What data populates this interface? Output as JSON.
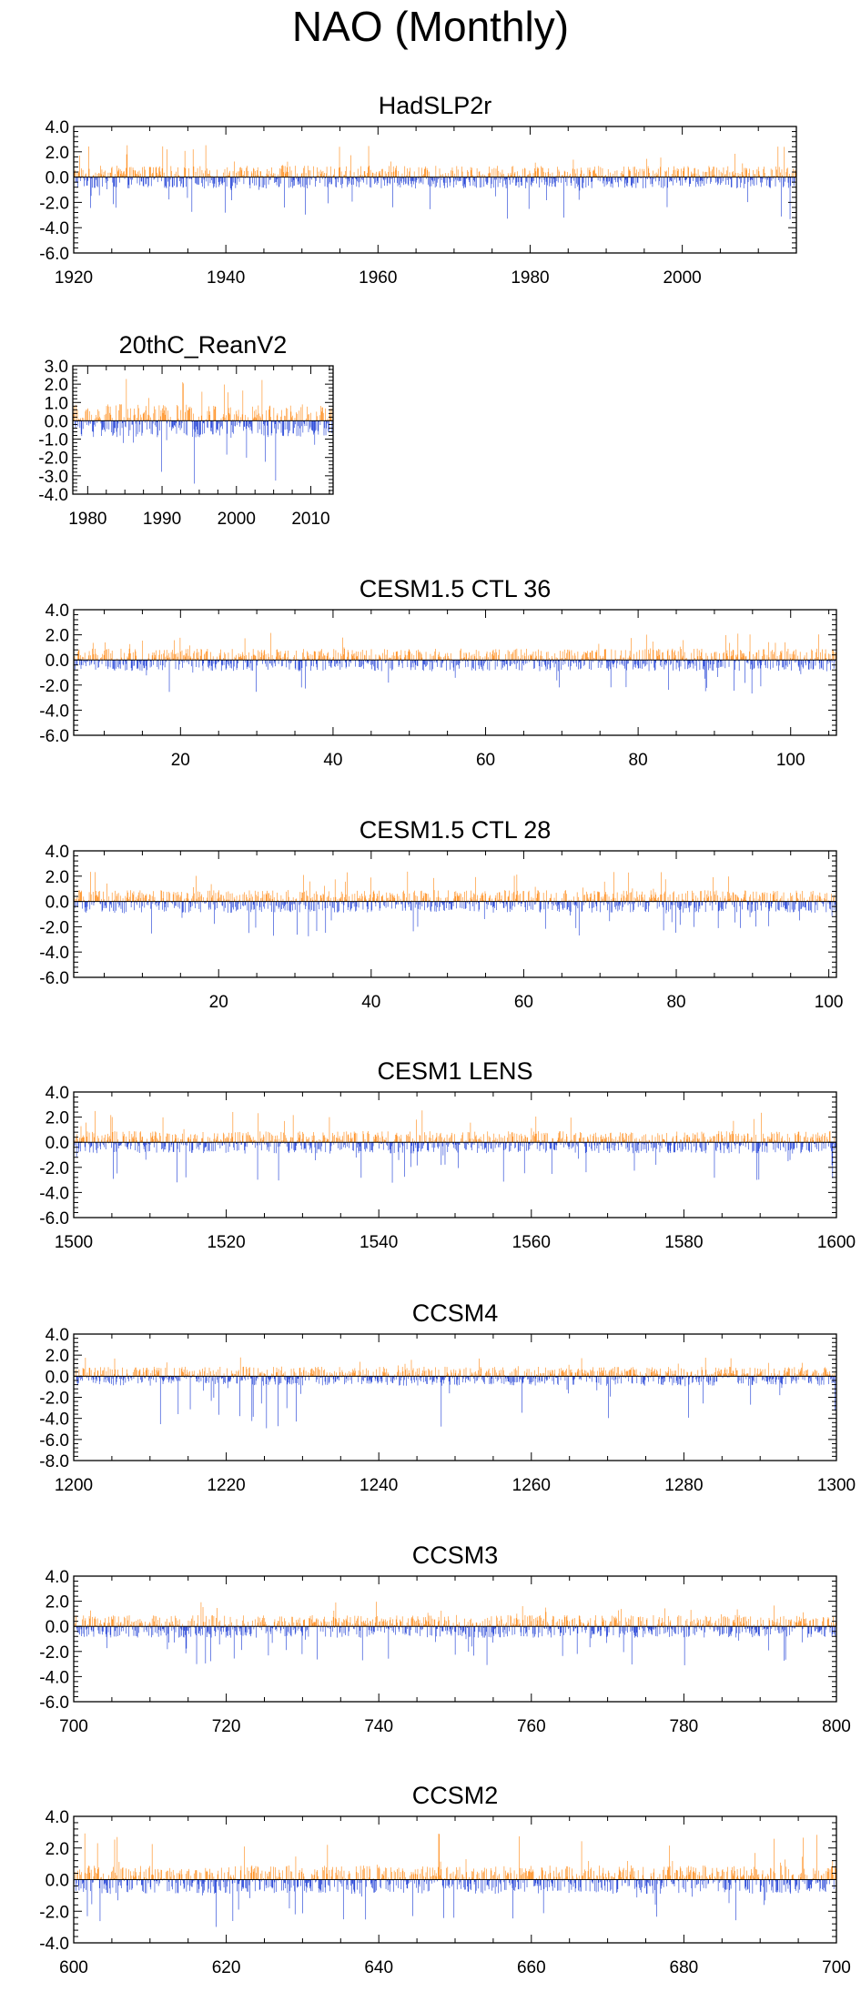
{
  "page_title": "NAO (Monthly)",
  "colors": {
    "positive": "#ff8c1a",
    "negative": "#1f3fd6",
    "axis": "#000000"
  },
  "chart_data": [
    {
      "type": "bar",
      "title": "HadSLP2r",
      "xlim": [
        1920,
        2015
      ],
      "ylim": [
        -6,
        4
      ],
      "xticks": [
        1920,
        1940,
        1960,
        1980,
        2000
      ],
      "xtick_labels": [
        "1920",
        "1940",
        "1960",
        "1980",
        "2000"
      ],
      "yticks": [
        4,
        2,
        0,
        -2,
        -4,
        -6
      ],
      "ytick_labels": [
        "4.0",
        "2.0",
        "0.0",
        "-2.0",
        "-4.0",
        "-6.0"
      ],
      "series": [
        {
          "x_start": 1920,
          "x_step": 0.0833,
          "count": 1140,
          "typical_positive_max": 2.8,
          "typical_negative_min": -3.8
        }
      ]
    },
    {
      "type": "bar",
      "title": "20thC_ReanV2",
      "xlim": [
        1978,
        2013
      ],
      "ylim": [
        -4,
        3
      ],
      "xticks": [
        1980,
        1990,
        2000,
        2010
      ],
      "xtick_labels": [
        "1980",
        "1990",
        "2000",
        "2010"
      ],
      "yticks": [
        3,
        2,
        1,
        0,
        -1,
        -2,
        -3,
        -4
      ],
      "ytick_labels": [
        "3.0",
        "2.0",
        "1.0",
        "0.0",
        "-1.0",
        "-2.0",
        "-3.0",
        "-4.0"
      ],
      "series": [
        {
          "x_start": 1978,
          "x_step": 0.0833,
          "count": 420,
          "typical_positive_max": 2.7,
          "typical_negative_min": -3.9
        }
      ]
    },
    {
      "type": "bar",
      "title": "CESM1.5 CTL 36",
      "xlim": [
        6,
        106
      ],
      "ylim": [
        -6,
        4
      ],
      "xticks": [
        20,
        40,
        60,
        80,
        100
      ],
      "xtick_labels": [
        "20",
        "40",
        "60",
        "80",
        "100"
      ],
      "yticks": [
        4,
        2,
        0,
        -2,
        -4,
        -6
      ],
      "ytick_labels": [
        "4.0",
        "2.0",
        "0.0",
        "-2.0",
        "-4.0",
        "-6.0"
      ],
      "series": [
        {
          "x_start": 6,
          "x_step": 0.0833,
          "count": 1200,
          "typical_positive_max": 2.5,
          "typical_negative_min": -3.2
        }
      ]
    },
    {
      "type": "bar",
      "title": "CESM1.5 CTL 28",
      "xlim": [
        1,
        101
      ],
      "ylim": [
        -6,
        4
      ],
      "xticks": [
        20,
        40,
        60,
        80,
        100
      ],
      "xtick_labels": [
        "20",
        "40",
        "60",
        "80",
        "100"
      ],
      "yticks": [
        4,
        2,
        0,
        -2,
        -4,
        -6
      ],
      "ytick_labels": [
        "4.0",
        "2.0",
        "0.0",
        "-2.0",
        "-4.0",
        "-6.0"
      ],
      "series": [
        {
          "x_start": 1,
          "x_step": 0.0833,
          "count": 1200,
          "typical_positive_max": 2.7,
          "typical_negative_min": -3.2
        }
      ]
    },
    {
      "type": "bar",
      "title": "CESM1 LENS",
      "xlim": [
        1500,
        1600
      ],
      "ylim": [
        -6,
        4
      ],
      "xticks": [
        1500,
        1520,
        1540,
        1560,
        1580,
        1600
      ],
      "xtick_labels": [
        "1500",
        "1520",
        "1540",
        "1560",
        "1580",
        "1600"
      ],
      "yticks": [
        4,
        2,
        0,
        -2,
        -4,
        -6
      ],
      "ytick_labels": [
        "4.0",
        "2.0",
        "0.0",
        "-2.0",
        "-4.0",
        "-6.0"
      ],
      "series": [
        {
          "x_start": 1500,
          "x_step": 0.0833,
          "count": 1200,
          "typical_positive_max": 3.0,
          "typical_negative_min": -3.6
        }
      ]
    },
    {
      "type": "bar",
      "title": "CCSM4",
      "xlim": [
        1200,
        1300
      ],
      "ylim": [
        -8,
        4
      ],
      "xticks": [
        1200,
        1220,
        1240,
        1260,
        1280,
        1300
      ],
      "xtick_labels": [
        "1200",
        "1220",
        "1240",
        "1260",
        "1280",
        "1300"
      ],
      "yticks": [
        4,
        2,
        0,
        -2,
        -4,
        -6,
        -8
      ],
      "ytick_labels": [
        "4.0",
        "2.0",
        "0.0",
        "-2.0",
        "-4.0",
        "-6.0",
        "-8.0"
      ],
      "series": [
        {
          "x_start": 1200,
          "x_step": 0.0833,
          "count": 1200,
          "typical_positive_max": 2.0,
          "typical_negative_min": -5.5
        }
      ]
    },
    {
      "type": "bar",
      "title": "CCSM3",
      "xlim": [
        700,
        800
      ],
      "ylim": [
        -6,
        4
      ],
      "xticks": [
        700,
        720,
        740,
        760,
        780,
        800
      ],
      "xtick_labels": [
        "700",
        "720",
        "740",
        "760",
        "780",
        "800"
      ],
      "yticks": [
        4,
        2,
        0,
        -2,
        -4,
        -6
      ],
      "ytick_labels": [
        "4.0",
        "2.0",
        "0.0",
        "-2.0",
        "-4.0",
        "-6.0"
      ],
      "series": [
        {
          "x_start": 700,
          "x_step": 0.0833,
          "count": 1200,
          "typical_positive_max": 2.2,
          "typical_negative_min": -3.5
        }
      ]
    },
    {
      "type": "bar",
      "title": "CCSM2",
      "xlim": [
        600,
        700
      ],
      "ylim": [
        -4,
        4
      ],
      "xticks": [
        600,
        620,
        640,
        660,
        680,
        700
      ],
      "xtick_labels": [
        "600",
        "620",
        "640",
        "660",
        "680",
        "700"
      ],
      "yticks": [
        4,
        2,
        0,
        -2,
        -4
      ],
      "ytick_labels": [
        "4.0",
        "2.0",
        "0.0",
        "-2.0",
        "-4.0"
      ],
      "series": [
        {
          "x_start": 600,
          "x_step": 0.0833,
          "count": 1200,
          "typical_positive_max": 3.3,
          "typical_negative_min": -3.4
        }
      ]
    }
  ]
}
